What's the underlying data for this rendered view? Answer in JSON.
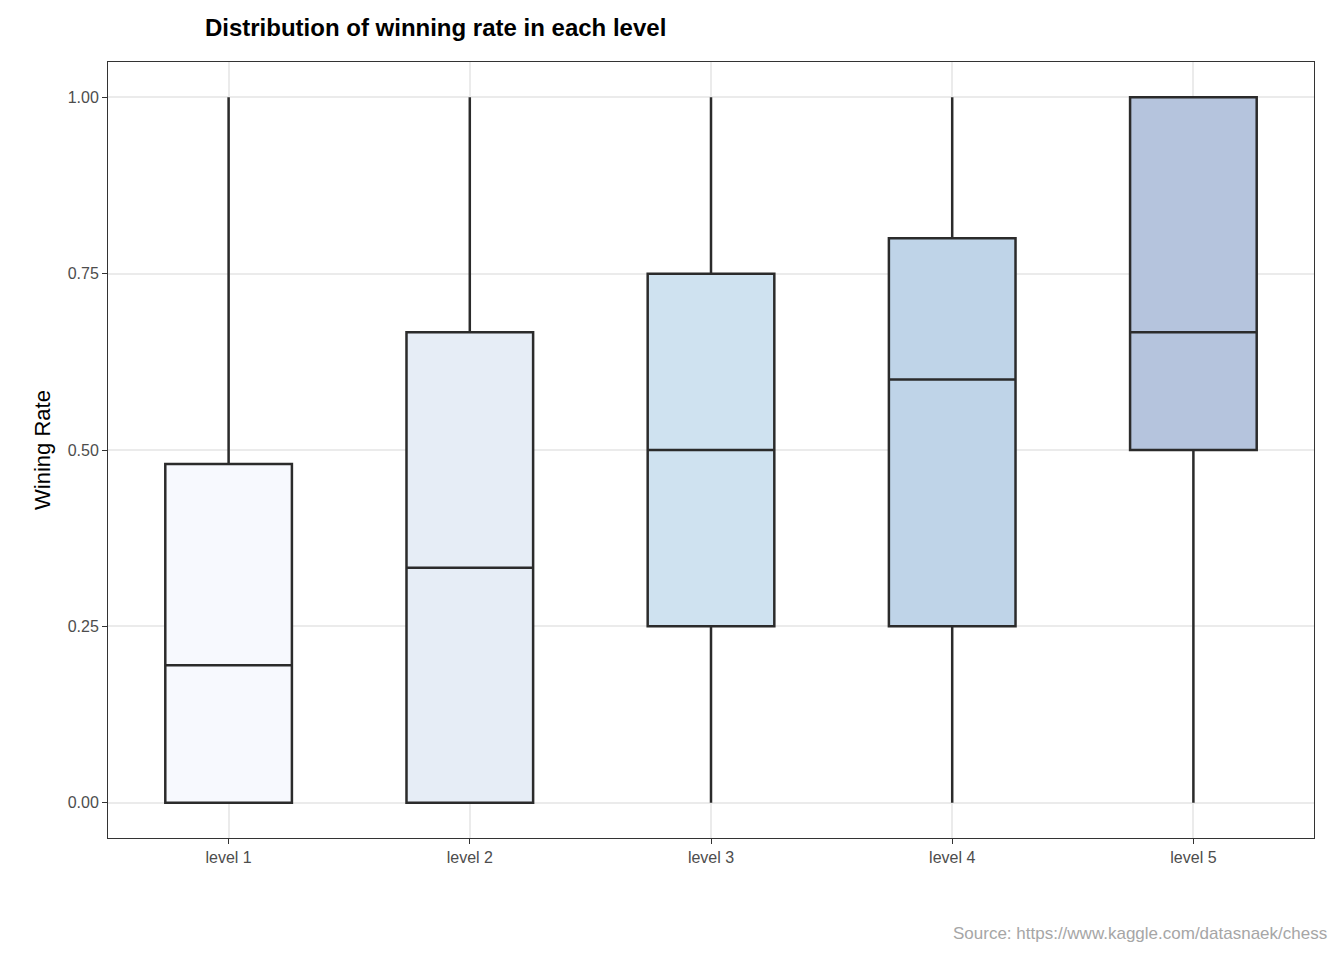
{
  "chart_data": {
    "type": "box",
    "title": "Distribution of winning rate in each level",
    "ylabel": "Wining Rate",
    "caption": "Source: https://www.kaggle.com/datasnaek/chess",
    "categories": [
      "level 1",
      "level 2",
      "level 3",
      "level 4",
      "level 5"
    ],
    "min": [
      0,
      0,
      0,
      0,
      0
    ],
    "q1": [
      0,
      0,
      0.25,
      0.25,
      0.5
    ],
    "median": [
      0.195,
      0.333,
      0.5,
      0.6,
      0.667
    ],
    "q3": [
      0.48,
      0.667,
      0.75,
      0.8,
      1
    ],
    "max": [
      1,
      1,
      1,
      1,
      1
    ],
    "colors": [
      "#f7f9fe",
      "#e6edf6",
      "#cfe2f0",
      "#bfd4e8",
      "#b5c4dd"
    ],
    "ylim": [
      -0.05,
      1.05
    ],
    "yticks": [
      {
        "value": 0,
        "label": "0.00"
      },
      {
        "value": 0.25,
        "label": "0.25"
      },
      {
        "value": 0.5,
        "label": "0.50"
      },
      {
        "value": 0.75,
        "label": "0.75"
      },
      {
        "value": 1,
        "label": "1.00"
      }
    ],
    "grid": true
  }
}
